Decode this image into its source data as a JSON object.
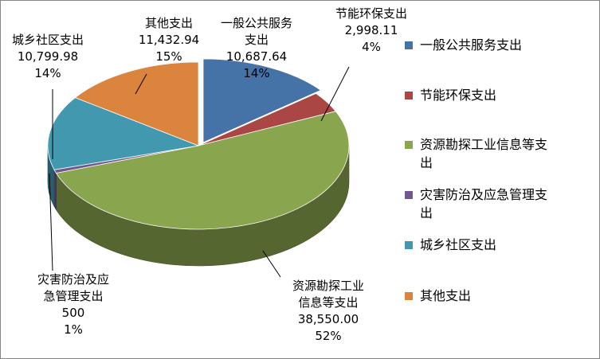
{
  "chart_data": {
    "type": "pie",
    "style": "3d-exploded-pie",
    "slices": [
      {
        "name": "一般公共服务支出",
        "value": 10687.64,
        "value_label": "10,687.64",
        "percent": "14%",
        "color": "#4572A7"
      },
      {
        "name": "节能环保支出",
        "value": 2998.11,
        "value_label": "2,998.11",
        "percent": "4%",
        "color": "#AA4643"
      },
      {
        "name": "资源勘探工业信息等支出",
        "value": 38550.0,
        "value_label": "38,550.00",
        "percent": "52%",
        "color": "#89A54E"
      },
      {
        "name": "灾害防治及应急管理支出",
        "value": 500,
        "value_label": "500",
        "percent": "1%",
        "color": "#71588F"
      },
      {
        "name": "城乡社区支出",
        "value": 10799.98,
        "value_label": "10,799.98",
        "percent": "14%",
        "color": "#4198AF"
      },
      {
        "name": "其他支出",
        "value": 11432.94,
        "value_label": "11,432.94",
        "percent": "15%",
        "color": "#DB843D"
      }
    ],
    "legend": {
      "position": "right",
      "items": [
        "一般公共服务支出",
        "节能环保支出",
        "资源勘探工业信息等支出",
        "灾害防治及应急管理支出",
        "城乡社区支出",
        "其他支出"
      ]
    },
    "data_labels": {
      "lines": [
        [
          "一般公共服务",
          "支出",
          "10,687.64",
          "14%"
        ],
        [
          "节能环保支出",
          "2,998.11",
          "4%"
        ],
        [
          "资源勘探工业",
          "信息等支出",
          "38,550.00",
          "52%"
        ],
        [
          "灾害防治及应",
          "急管理支出",
          "500",
          "1%"
        ],
        [
          "城乡社区支出",
          "10,799.98",
          "14%"
        ],
        [
          "其他支出",
          "11,432.94",
          "15%"
        ]
      ]
    },
    "legend_lines": [
      [
        "一般公共服务支出"
      ],
      [
        "节能环保支出"
      ],
      [
        "资源勘探工业信息等支",
        "出"
      ],
      [
        "灾害防治及应急管理支",
        "出"
      ],
      [
        "城乡社区支出"
      ],
      [
        "其他支出"
      ]
    ]
  }
}
